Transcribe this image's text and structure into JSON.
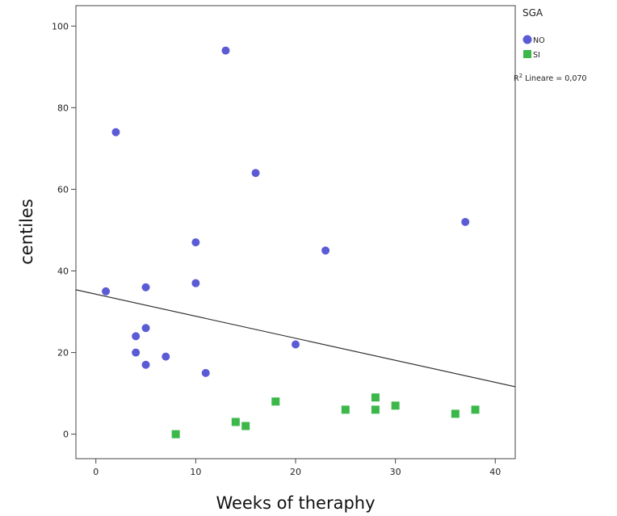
{
  "chart_data": {
    "type": "scatter",
    "xlabel": "Weeks of theraphy",
    "ylabel": "centiles",
    "xlim": [
      -2,
      42
    ],
    "ylim": [
      -6,
      105
    ],
    "x_ticks": [
      0,
      10,
      20,
      30,
      40
    ],
    "y_ticks": [
      0,
      20,
      40,
      60,
      80,
      100
    ],
    "grid": false,
    "legend": {
      "title": "SGA",
      "placement": "right",
      "fit_label_sup": "2",
      "fit_label_prefix": "R",
      "fit_label_rest": " Lineare = 0,070"
    },
    "series": [
      {
        "name": "NO",
        "marker": "circle",
        "color": "#5b5bd6",
        "points": [
          [
            13,
            94
          ],
          [
            2,
            74
          ],
          [
            16,
            64
          ],
          [
            37,
            52
          ],
          [
            10,
            47
          ],
          [
            23,
            45
          ],
          [
            10,
            37
          ],
          [
            5,
            36
          ],
          [
            1,
            35
          ],
          [
            5,
            26
          ],
          [
            4,
            24
          ],
          [
            20,
            22
          ],
          [
            4,
            20
          ],
          [
            7,
            19
          ],
          [
            5,
            17
          ],
          [
            11,
            15
          ]
        ]
      },
      {
        "name": "SI",
        "marker": "square",
        "color": "#3cb84a",
        "points": [
          [
            8,
            0
          ],
          [
            14,
            3
          ],
          [
            15,
            2
          ],
          [
            18,
            8
          ],
          [
            25,
            6
          ],
          [
            28,
            9
          ],
          [
            28,
            6
          ],
          [
            30,
            7
          ],
          [
            36,
            5
          ],
          [
            38,
            6
          ]
        ]
      }
    ],
    "fit_line": {
      "intercept": 34.3,
      "slope": -0.54
    }
  }
}
